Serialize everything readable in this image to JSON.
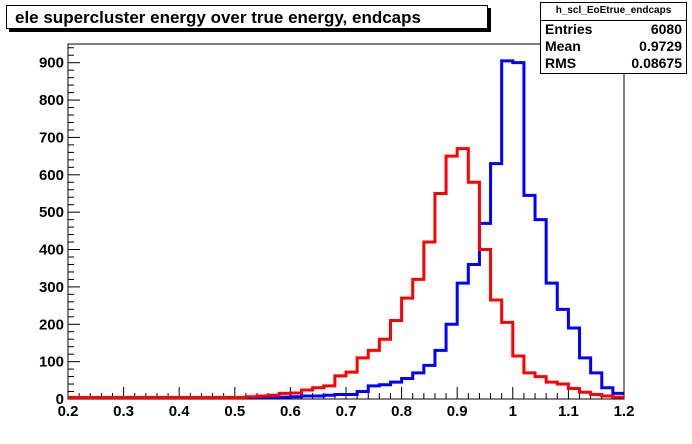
{
  "title": "ele supercluster energy over true energy, endcaps",
  "stats": {
    "name": "h_scl_EoEtrue_endcaps",
    "rows": [
      {
        "label": "Entries",
        "value": "6080"
      },
      {
        "label": "Mean",
        "value": "0.9729"
      },
      {
        "label": "RMS",
        "value": "0.08675"
      }
    ]
  },
  "chart_data": {
    "type": "histogram",
    "xlim": [
      0.2,
      1.2
    ],
    "ylim": [
      0,
      950
    ],
    "x_ticks": [
      "0.2",
      "0.3",
      "0.4",
      "0.5",
      "0.6",
      "0.7",
      "0.8",
      "0.9",
      "1",
      "1.1",
      "1.2"
    ],
    "y_ticks": [
      "0",
      "100",
      "200",
      "300",
      "400",
      "500",
      "600",
      "700",
      "800",
      "900"
    ],
    "grid": false,
    "legend": "none",
    "bins": {
      "low": 0.2,
      "high": 1.2,
      "count": 50
    },
    "series": [
      {
        "color": "#0000ff",
        "values": [
          0,
          0,
          0,
          0,
          0,
          0,
          0,
          0,
          0,
          0,
          0,
          0,
          0,
          0,
          0,
          1,
          1,
          0,
          2,
          5,
          6,
          8,
          8,
          10,
          12,
          12,
          20,
          35,
          38,
          45,
          55,
          70,
          90,
          130,
          200,
          310,
          360,
          470,
          630,
          905,
          900,
          545,
          480,
          310,
          240,
          190,
          110,
          70,
          30,
          15
        ]
      },
      {
        "color": "#ff0000",
        "values": [
          1,
          1,
          1,
          1,
          1,
          1,
          1,
          1,
          1,
          1,
          1,
          1,
          1,
          1,
          2,
          3,
          6,
          8,
          10,
          15,
          16,
          24,
          30,
          35,
          62,
          72,
          110,
          130,
          160,
          210,
          270,
          320,
          420,
          550,
          650,
          670,
          580,
          400,
          265,
          205,
          115,
          70,
          60,
          45,
          40,
          28,
          18,
          12,
          8,
          5
        ]
      }
    ]
  }
}
